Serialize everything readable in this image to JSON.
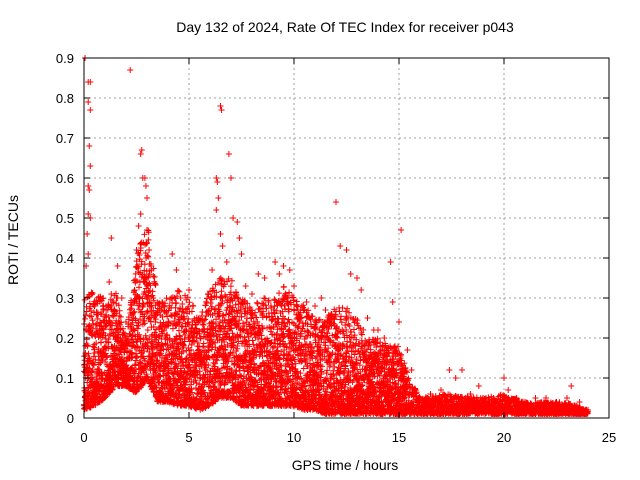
{
  "chart_data": {
    "type": "scatter",
    "title": "Day 132 of 2024, Rate Of TEC Index for receiver p043",
    "xlabel": "GPS time / hours",
    "ylabel": "ROTI / TECUs",
    "xlim": [
      0,
      25
    ],
    "ylim": [
      0,
      0.9
    ],
    "xticks": [
      "0",
      "5",
      "10",
      "15",
      "20",
      "25"
    ],
    "yticks": [
      "0",
      "0.1",
      "0.2",
      "0.3",
      "0.4",
      "0.5",
      "0.6",
      "0.7",
      "0.8",
      "0.9"
    ],
    "grid": true,
    "marker": "+",
    "color": "#ff0000",
    "series": [
      {
        "name": "ROTI",
        "points": [
          [
            0.05,
            0.9
          ],
          [
            0.2,
            0.84
          ],
          [
            0.3,
            0.84
          ],
          [
            0.2,
            0.79
          ],
          [
            0.3,
            0.77
          ],
          [
            0.25,
            0.68
          ],
          [
            0.3,
            0.63
          ],
          [
            0.2,
            0.58
          ],
          [
            0.25,
            0.57
          ],
          [
            0.2,
            0.51
          ],
          [
            0.3,
            0.5
          ],
          [
            0.15,
            0.46
          ],
          [
            0.2,
            0.41
          ],
          [
            0.1,
            0.38
          ],
          [
            0.35,
            0.31
          ],
          [
            0.5,
            0.28
          ],
          [
            0.8,
            0.26
          ],
          [
            1.2,
            0.34
          ],
          [
            1.3,
            0.45
          ],
          [
            1.6,
            0.38
          ],
          [
            1.8,
            0.3
          ],
          [
            2.0,
            0.24
          ],
          [
            2.2,
            0.87
          ],
          [
            2.5,
            0.42
          ],
          [
            2.6,
            0.48
          ],
          [
            2.7,
            0.51
          ],
          [
            2.7,
            0.66
          ],
          [
            2.75,
            0.67
          ],
          [
            2.8,
            0.6
          ],
          [
            2.9,
            0.6
          ],
          [
            3.0,
            0.55
          ],
          [
            2.95,
            0.58
          ],
          [
            3.0,
            0.47
          ],
          [
            3.1,
            0.42
          ],
          [
            3.2,
            0.38
          ],
          [
            3.0,
            0.33
          ],
          [
            3.3,
            0.3
          ],
          [
            3.6,
            0.27
          ],
          [
            4.0,
            0.23
          ],
          [
            4.2,
            0.41
          ],
          [
            4.4,
            0.37
          ],
          [
            4.6,
            0.3
          ],
          [
            5.0,
            0.32
          ],
          [
            5.2,
            0.28
          ],
          [
            5.5,
            0.21
          ],
          [
            5.9,
            0.31
          ],
          [
            6.1,
            0.37
          ],
          [
            6.3,
            0.6
          ],
          [
            6.35,
            0.59
          ],
          [
            6.3,
            0.52
          ],
          [
            6.4,
            0.55
          ],
          [
            6.5,
            0.78
          ],
          [
            6.55,
            0.77
          ],
          [
            6.5,
            0.46
          ],
          [
            6.6,
            0.43
          ],
          [
            6.8,
            0.39
          ],
          [
            6.9,
            0.66
          ],
          [
            7.0,
            0.6
          ],
          [
            7.1,
            0.5
          ],
          [
            7.3,
            0.49
          ],
          [
            7.4,
            0.45
          ],
          [
            7.5,
            0.41
          ],
          [
            7.7,
            0.33
          ],
          [
            8.0,
            0.31
          ],
          [
            8.3,
            0.36
          ],
          [
            8.6,
            0.35
          ],
          [
            8.9,
            0.28
          ],
          [
            9.1,
            0.39
          ],
          [
            9.3,
            0.36
          ],
          [
            9.5,
            0.38
          ],
          [
            9.8,
            0.37
          ],
          [
            10.0,
            0.33
          ],
          [
            10.3,
            0.27
          ],
          [
            10.6,
            0.29
          ],
          [
            11.0,
            0.28
          ],
          [
            11.3,
            0.3
          ],
          [
            11.5,
            0.27
          ],
          [
            11.7,
            0.23
          ],
          [
            12.0,
            0.54
          ],
          [
            12.2,
            0.43
          ],
          [
            12.5,
            0.42
          ],
          [
            12.7,
            0.36
          ],
          [
            13.0,
            0.35
          ],
          [
            13.2,
            0.32
          ],
          [
            13.5,
            0.25
          ],
          [
            13.8,
            0.22
          ],
          [
            14.0,
            0.22
          ],
          [
            14.3,
            0.2
          ],
          [
            14.6,
            0.39
          ],
          [
            14.7,
            0.29
          ],
          [
            15.0,
            0.24
          ],
          [
            15.1,
            0.47
          ],
          [
            15.4,
            0.17
          ],
          [
            15.6,
            0.12
          ],
          [
            16.0,
            0.05
          ],
          [
            16.5,
            0.06
          ],
          [
            17.0,
            0.07
          ],
          [
            17.4,
            0.12
          ],
          [
            17.7,
            0.1
          ],
          [
            18.0,
            0.12
          ],
          [
            18.4,
            0.06
          ],
          [
            18.8,
            0.08
          ],
          [
            19.0,
            0.05
          ],
          [
            19.5,
            0.05
          ],
          [
            20.0,
            0.1
          ],
          [
            20.2,
            0.07
          ],
          [
            20.6,
            0.05
          ],
          [
            21.0,
            0.04
          ],
          [
            21.5,
            0.05
          ],
          [
            22.0,
            0.05
          ],
          [
            22.5,
            0.04
          ],
          [
            23.0,
            0.05
          ],
          [
            23.2,
            0.08
          ],
          [
            23.6,
            0.04
          ],
          [
            24.0,
            0.02
          ]
        ]
      }
    ],
    "density_envelope": {
      "description": "upper bound of the dense point cloud (hours, TECUs)",
      "x": [
        0,
        0.5,
        1,
        1.5,
        2,
        2.5,
        3,
        3.5,
        4,
        4.5,
        5,
        5.5,
        6,
        6.5,
        7,
        7.5,
        8,
        8.5,
        9,
        9.5,
        10,
        10.5,
        11,
        11.5,
        12,
        12.5,
        13,
        13.5,
        14,
        14.5,
        15,
        15.5,
        16,
        17,
        18,
        19,
        20,
        21,
        22,
        23,
        24
      ],
      "upper": [
        0.3,
        0.32,
        0.3,
        0.33,
        0.2,
        0.4,
        0.5,
        0.3,
        0.3,
        0.32,
        0.3,
        0.25,
        0.32,
        0.35,
        0.35,
        0.3,
        0.28,
        0.3,
        0.3,
        0.33,
        0.3,
        0.28,
        0.25,
        0.25,
        0.28,
        0.28,
        0.25,
        0.2,
        0.2,
        0.18,
        0.18,
        0.1,
        0.05,
        0.06,
        0.06,
        0.05,
        0.06,
        0.04,
        0.04,
        0.04,
        0.02
      ],
      "lower": [
        0.02,
        0.03,
        0.05,
        0.08,
        0.08,
        0.06,
        0.1,
        0.04,
        0.04,
        0.03,
        0.03,
        0.02,
        0.03,
        0.05,
        0.05,
        0.03,
        0.03,
        0.03,
        0.03,
        0.03,
        0.03,
        0.02,
        0.02,
        0.01,
        0.01,
        0.01,
        0.01,
        0.01,
        0.01,
        0.01,
        0.01,
        0.01,
        0.01,
        0.01,
        0.01,
        0.01,
        0.01,
        0.01,
        0.01,
        0.01,
        0.01
      ]
    }
  }
}
